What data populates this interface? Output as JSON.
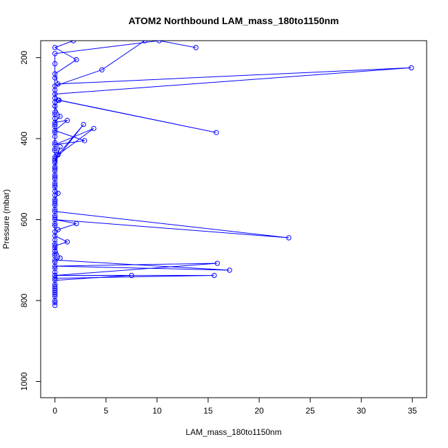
{
  "chart_data": {
    "type": "scatter",
    "connected": true,
    "title": "ATOM2 Northbound LAM_mass_180to1150nm",
    "xlabel": "LAM_mass_180to1150nm",
    "ylabel": "Pressure (mbar)",
    "xlim": [
      -1.4,
      36.4
    ],
    "ylim": [
      1040,
      158
    ],
    "y_inverted": true,
    "grid": false,
    "legend": "none",
    "marker": "open-circle",
    "color": "#0000ff",
    "x_ticks": [
      0,
      5,
      10,
      15,
      20,
      25,
      30,
      35
    ],
    "x_tick_labels": [
      "0",
      "5",
      "10",
      "15",
      "20",
      "25",
      "30",
      "35"
    ],
    "y_ticks": [
      200,
      400,
      600,
      800,
      1000
    ],
    "y_tick_labels": [
      "200",
      "400",
      "600",
      "800",
      "1000"
    ],
    "series": [
      {
        "points": [
          [
            1.8,
            158
          ],
          [
            0.0,
            175
          ],
          [
            2.1,
            205
          ],
          [
            0.0,
            240
          ],
          [
            0.3,
            265
          ],
          [
            34.9,
            225
          ],
          [
            0.0,
            290
          ],
          [
            0.3,
            305
          ],
          [
            15.8,
            385
          ],
          [
            0.4,
            305
          ],
          [
            0.0,
            320
          ],
          [
            0.5,
            345
          ],
          [
            0.0,
            360
          ],
          [
            1.2,
            355
          ],
          [
            0.0,
            380
          ],
          [
            2.9,
            405
          ],
          [
            0.0,
            415
          ],
          [
            3.8,
            375
          ],
          [
            0.3,
            440
          ],
          [
            2.8,
            365
          ],
          [
            0.0,
            455
          ],
          [
            0.5,
            420
          ],
          [
            0.0,
            470
          ],
          [
            0.0,
            480
          ],
          [
            0.0,
            500
          ],
          [
            0.0,
            520
          ],
          [
            0.3,
            535
          ],
          [
            0.0,
            550
          ],
          [
            0.0,
            565
          ],
          [
            0.0,
            580
          ],
          [
            22.9,
            645
          ],
          [
            0.0,
            600
          ],
          [
            2.1,
            610
          ],
          [
            0.3,
            625
          ],
          [
            0.0,
            640
          ],
          [
            1.2,
            655
          ],
          [
            0.0,
            665
          ],
          [
            0.5,
            695
          ],
          [
            0.0,
            700
          ],
          [
            17.1,
            725
          ],
          [
            0.0,
            715
          ],
          [
            15.9,
            708
          ],
          [
            0.0,
            738
          ],
          [
            15.6,
            738
          ],
          [
            0.0,
            745
          ],
          [
            0.0,
            760
          ],
          [
            0.0,
            770
          ],
          [
            0.0,
            790
          ],
          [
            0.0,
            805
          ],
          [
            0.0,
            812
          ]
        ]
      },
      {
        "points": [
          [
            8.8,
            158
          ],
          [
            4.6,
            230
          ],
          [
            0.0,
            270
          ],
          [
            0.0,
            300
          ],
          [
            0.0,
            320
          ],
          [
            0.0,
            340
          ],
          [
            0.0,
            370
          ],
          [
            0.0,
            395
          ],
          [
            0.0,
            430
          ],
          [
            0.0,
            450
          ],
          [
            0.0,
            470
          ],
          [
            0.0,
            490
          ],
          [
            0.0,
            510
          ],
          [
            0.0,
            530
          ],
          [
            0.0,
            560
          ],
          [
            0.0,
            590
          ],
          [
            0.0,
            610
          ],
          [
            0.0,
            630
          ],
          [
            0.0,
            650
          ],
          [
            0.0,
            670
          ],
          [
            0.0,
            685
          ],
          [
            0.0,
            705
          ],
          [
            0.0,
            720
          ],
          [
            0.0,
            738
          ],
          [
            7.5,
            738
          ],
          [
            0.0,
            750
          ],
          [
            0.0,
            780
          ],
          [
            0.0,
            800
          ]
        ]
      },
      {
        "points": [
          [
            13.8,
            175
          ],
          [
            10.2,
            158
          ],
          [
            0.0,
            190
          ],
          [
            0.0,
            215
          ],
          [
            0.0,
            250
          ],
          [
            0.0,
            280
          ],
          [
            0.0,
            310
          ],
          [
            0.0,
            335
          ],
          [
            0.0,
            350
          ],
          [
            0.0,
            365
          ],
          [
            0.0,
            385
          ],
          [
            0.0,
            410
          ],
          [
            0.0,
            425
          ],
          [
            0.0,
            445
          ],
          [
            0.0,
            460
          ],
          [
            0.0,
            475
          ],
          [
            0.0,
            495
          ],
          [
            0.0,
            515
          ],
          [
            0.0,
            540
          ],
          [
            0.0,
            555
          ],
          [
            0.0,
            575
          ],
          [
            0.0,
            595
          ],
          [
            0.0,
            615
          ],
          [
            0.0,
            660
          ],
          [
            0.0,
            678
          ],
          [
            0.0,
            690
          ],
          [
            0.0,
            730
          ],
          [
            0.0,
            765
          ],
          [
            0.0,
            775
          ],
          [
            0.0,
            785
          ]
        ]
      }
    ]
  }
}
